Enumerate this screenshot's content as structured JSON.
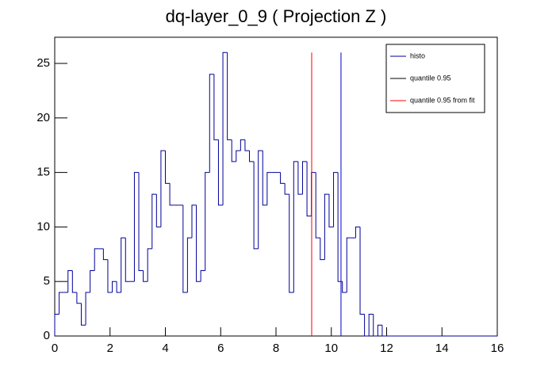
{
  "chart_data": {
    "type": "histogram",
    "title": "dq-layer_0_9 ( Projection Z )",
    "bins": [
      0,
      0.16,
      0.32,
      0.48,
      0.64,
      0.8,
      0.96,
      1.12,
      1.28,
      1.44,
      1.6,
      1.76,
      1.92,
      2.08,
      2.24,
      2.4,
      2.56,
      2.72,
      2.88,
      3.04,
      3.2,
      3.36,
      3.52,
      3.68,
      3.84,
      4,
      4.16,
      4.32,
      4.48,
      4.64,
      4.8,
      4.96,
      5.12,
      5.28,
      5.44,
      5.6,
      5.76,
      5.92,
      6.08,
      6.24,
      6.4,
      6.56,
      6.72,
      6.88,
      7.04,
      7.2,
      7.36,
      7.52,
      7.68,
      7.84,
      8,
      8.16,
      8.32,
      8.48,
      8.64,
      8.8,
      8.96,
      9.12,
      9.28,
      9.44,
      9.6,
      9.76,
      9.92,
      10.08,
      10.24,
      10.4,
      10.56,
      10.72,
      10.88,
      11.04,
      11.2,
      11.36,
      11.52,
      11.68,
      11.84,
      12,
      12.16,
      12.32,
      12.48,
      12.64,
      12.8,
      12.96,
      13.12,
      13.28,
      13.44,
      13.6,
      13.76,
      13.92,
      14.08,
      14.24,
      14.4,
      14.56,
      14.72,
      14.88,
      15.04,
      15.2,
      15.36,
      15.52,
      15.68,
      15.84,
      16
    ],
    "series": [
      {
        "name": "histo",
        "color": "#000099",
        "values": [
          2,
          4,
          4,
          6,
          4,
          3,
          1,
          4,
          6,
          8,
          8,
          7,
          4,
          5,
          4,
          9,
          5,
          5,
          15,
          6,
          5,
          8,
          13,
          10,
          17,
          14,
          12,
          12,
          12,
          4,
          9,
          12,
          5,
          6,
          15,
          24,
          18,
          12,
          26,
          18,
          16,
          17,
          18,
          17,
          16,
          8,
          17,
          12,
          15,
          15,
          15,
          14,
          13,
          4,
          16,
          13,
          16,
          11,
          15,
          9,
          7,
          13,
          10,
          15,
          5,
          4,
          9,
          9,
          10,
          2,
          0,
          2,
          0,
          1,
          0,
          0,
          0,
          0,
          0,
          0,
          0,
          0,
          0,
          0,
          0,
          0,
          0,
          0,
          0,
          0,
          0,
          0,
          0,
          0,
          0,
          0,
          0,
          0,
          0,
          0
        ]
      }
    ],
    "lines": [
      {
        "name": "quantile 0.95",
        "x": 10.35,
        "top": 26,
        "color": "#0000cc",
        "legend_color": "#000000"
      },
      {
        "name": "quantile 0.95 from fit",
        "x": 9.29,
        "top": 26,
        "color": "#ff0000",
        "legend_color": "#ff0000"
      }
    ],
    "xlim": [
      0,
      16
    ],
    "xticks": [
      0,
      2,
      4,
      6,
      8,
      10,
      12,
      14,
      16
    ],
    "ylim": [
      0,
      27.4
    ],
    "yticks": [
      0,
      5,
      10,
      15,
      20,
      25
    ],
    "legend": "upper right"
  }
}
